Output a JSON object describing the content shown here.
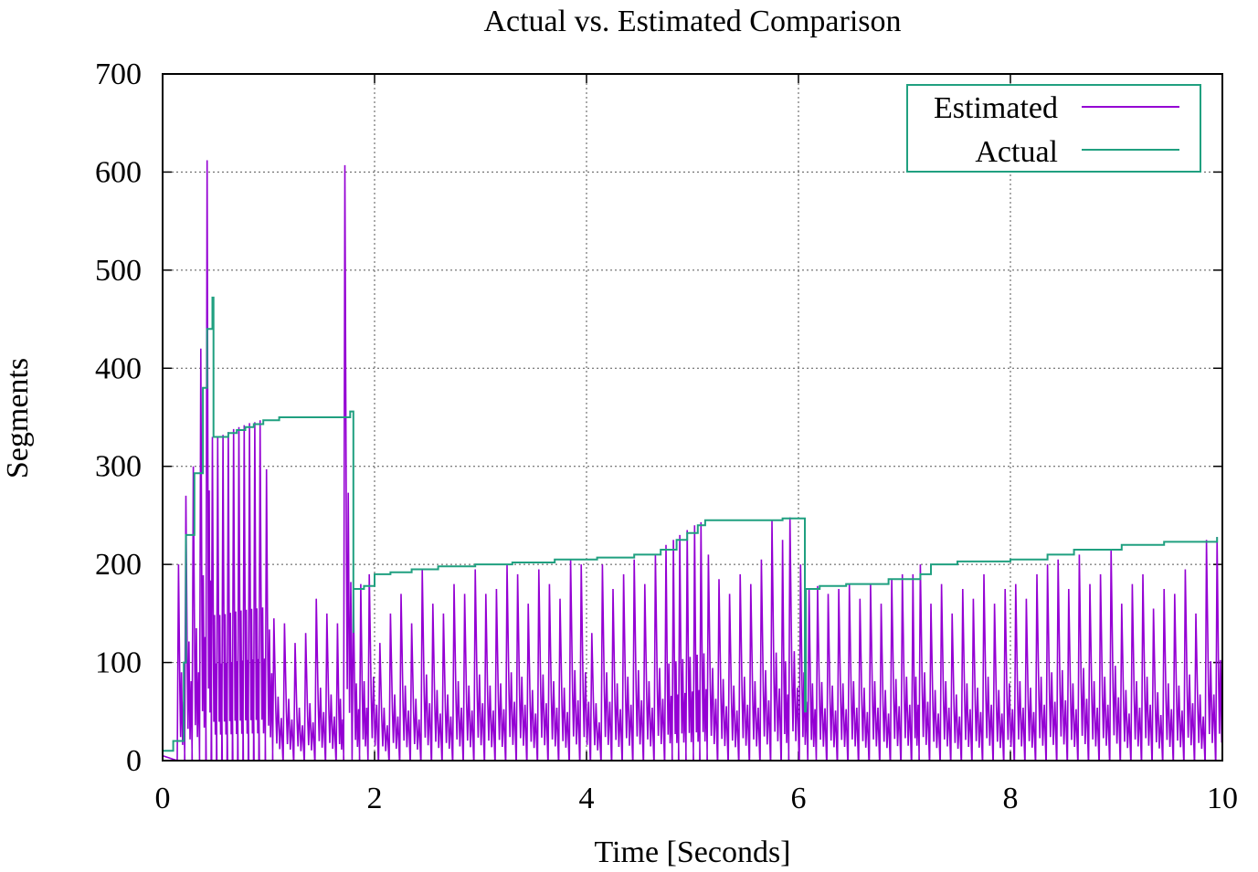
{
  "chart_data": {
    "type": "line",
    "title": "Actual vs. Estimated Comparison",
    "xlabel": "Time [Seconds]",
    "ylabel": "Segments",
    "xlim": [
      0,
      10
    ],
    "ylim": [
      0,
      700
    ],
    "xticks": [
      "0",
      "2",
      "4",
      "6",
      "8",
      "10"
    ],
    "yticks": [
      "0",
      "100",
      "200",
      "300",
      "400",
      "500",
      "600",
      "700"
    ],
    "grid": true,
    "legend_position": "top-right",
    "series": [
      {
        "name": "Estimated",
        "color": "#9400d3",
        "style": "sawtooth",
        "peaks": [
          [
            0.15,
            200
          ],
          [
            0.22,
            270
          ],
          [
            0.29,
            300
          ],
          [
            0.36,
            420
          ],
          [
            0.42,
            612
          ],
          [
            0.47,
            330
          ],
          [
            0.52,
            330
          ],
          [
            0.57,
            332
          ],
          [
            0.62,
            335
          ],
          [
            0.67,
            338
          ],
          [
            0.72,
            340
          ],
          [
            0.77,
            342
          ],
          [
            0.82,
            344
          ],
          [
            0.87,
            345
          ],
          [
            0.92,
            347
          ],
          [
            0.98,
            297
          ],
          [
            1.05,
            145
          ],
          [
            1.15,
            140
          ],
          [
            1.25,
            120
          ],
          [
            1.35,
            130
          ],
          [
            1.45,
            165
          ],
          [
            1.55,
            150
          ],
          [
            1.65,
            140
          ],
          [
            1.72,
            607
          ],
          [
            1.8,
            175
          ],
          [
            1.87,
            180
          ],
          [
            1.95,
            190
          ],
          [
            2.05,
            120
          ],
          [
            2.15,
            150
          ],
          [
            2.25,
            170
          ],
          [
            2.35,
            140
          ],
          [
            2.45,
            195
          ],
          [
            2.55,
            160
          ],
          [
            2.65,
            150
          ],
          [
            2.75,
            180
          ],
          [
            2.85,
            170
          ],
          [
            2.95,
            195
          ],
          [
            3.05,
            170
          ],
          [
            3.15,
            175
          ],
          [
            3.25,
            200
          ],
          [
            3.35,
            190
          ],
          [
            3.45,
            160
          ],
          [
            3.55,
            195
          ],
          [
            3.65,
            180
          ],
          [
            3.75,
            165
          ],
          [
            3.85,
            205
          ],
          [
            3.95,
            200
          ],
          [
            4.05,
            130
          ],
          [
            4.15,
            200
          ],
          [
            4.25,
            175
          ],
          [
            4.35,
            190
          ],
          [
            4.45,
            205
          ],
          [
            4.55,
            180
          ],
          [
            4.65,
            210
          ],
          [
            4.75,
            220
          ],
          [
            4.82,
            225
          ],
          [
            4.88,
            230
          ],
          [
            4.95,
            235
          ],
          [
            5.02,
            240
          ],
          [
            5.08,
            243
          ],
          [
            5.15,
            210
          ],
          [
            5.25,
            185
          ],
          [
            5.35,
            170
          ],
          [
            5.45,
            190
          ],
          [
            5.55,
            180
          ],
          [
            5.65,
            205
          ],
          [
            5.75,
            245
          ],
          [
            5.85,
            225
          ],
          [
            5.92,
            248
          ],
          [
            6.02,
            200
          ],
          [
            6.1,
            175
          ],
          [
            6.18,
            178
          ],
          [
            6.28,
            170
          ],
          [
            6.38,
            175
          ],
          [
            6.48,
            180
          ],
          [
            6.58,
            165
          ],
          [
            6.68,
            180
          ],
          [
            6.78,
            160
          ],
          [
            6.88,
            185
          ],
          [
            6.98,
            190
          ],
          [
            7.08,
            190
          ],
          [
            7.15,
            200
          ],
          [
            7.25,
            160
          ],
          [
            7.35,
            180
          ],
          [
            7.45,
            150
          ],
          [
            7.55,
            175
          ],
          [
            7.65,
            165
          ],
          [
            7.75,
            190
          ],
          [
            7.85,
            160
          ],
          [
            7.95,
            175
          ],
          [
            8.05,
            180
          ],
          [
            8.15,
            165
          ],
          [
            8.25,
            190
          ],
          [
            8.35,
            200
          ],
          [
            8.45,
            205
          ],
          [
            8.55,
            175
          ],
          [
            8.65,
            210
          ],
          [
            8.75,
            180
          ],
          [
            8.85,
            190
          ],
          [
            8.95,
            215
          ],
          [
            9.05,
            160
          ],
          [
            9.15,
            180
          ],
          [
            9.25,
            190
          ],
          [
            9.35,
            155
          ],
          [
            9.45,
            175
          ],
          [
            9.55,
            170
          ],
          [
            9.65,
            195
          ],
          [
            9.75,
            150
          ],
          [
            9.85,
            225
          ],
          [
            9.95,
            228
          ]
        ]
      },
      {
        "name": "Actual",
        "color": "#20a080",
        "style": "step",
        "points": [
          [
            0.0,
            10
          ],
          [
            0.05,
            10
          ],
          [
            0.1,
            20
          ],
          [
            0.18,
            20
          ],
          [
            0.2,
            100
          ],
          [
            0.22,
            230
          ],
          [
            0.28,
            230
          ],
          [
            0.3,
            293
          ],
          [
            0.36,
            293
          ],
          [
            0.38,
            380
          ],
          [
            0.42,
            440
          ],
          [
            0.47,
            472
          ],
          [
            0.48,
            330
          ],
          [
            0.6,
            330
          ],
          [
            0.62,
            334
          ],
          [
            0.7,
            337
          ],
          [
            0.78,
            340
          ],
          [
            0.86,
            343
          ],
          [
            0.95,
            347
          ],
          [
            1.1,
            350
          ],
          [
            1.7,
            350
          ],
          [
            1.77,
            356
          ],
          [
            1.8,
            130
          ],
          [
            1.8,
            175
          ],
          [
            1.9,
            178
          ],
          [
            2.0,
            190
          ],
          [
            2.15,
            192
          ],
          [
            2.35,
            195
          ],
          [
            2.6,
            198
          ],
          [
            2.95,
            200
          ],
          [
            3.3,
            202
          ],
          [
            3.7,
            205
          ],
          [
            4.1,
            207
          ],
          [
            4.45,
            210
          ],
          [
            4.7,
            215
          ],
          [
            4.85,
            225
          ],
          [
            4.95,
            232
          ],
          [
            5.05,
            240
          ],
          [
            5.12,
            245
          ],
          [
            5.65,
            245
          ],
          [
            5.85,
            247
          ],
          [
            6.05,
            247
          ],
          [
            6.06,
            50
          ],
          [
            6.07,
            175
          ],
          [
            6.2,
            178
          ],
          [
            6.45,
            180
          ],
          [
            6.85,
            185
          ],
          [
            7.15,
            190
          ],
          [
            7.25,
            200
          ],
          [
            7.5,
            203
          ],
          [
            8.0,
            205
          ],
          [
            8.35,
            210
          ],
          [
            8.6,
            215
          ],
          [
            9.05,
            220
          ],
          [
            9.45,
            223
          ],
          [
            9.95,
            228
          ]
        ]
      }
    ]
  }
}
